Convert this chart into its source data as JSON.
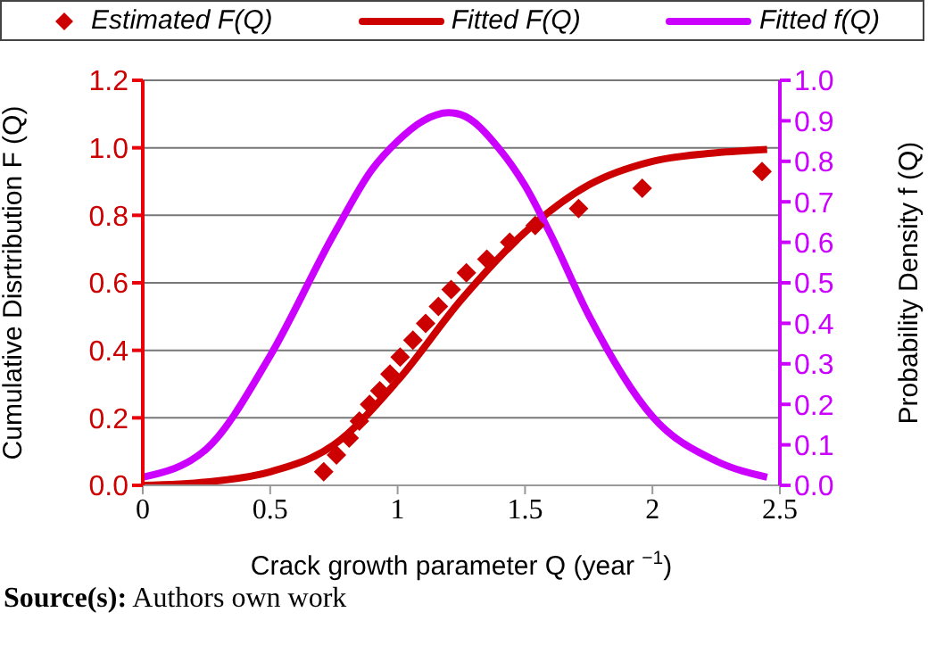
{
  "chart_data": {
    "type": "line",
    "xlabel": "Crack growth parameter Q (year $^{−1}$)",
    "ylabel": "Cumulative Disrtribution F (Q)",
    "y2label": "Probability Density f (Q)",
    "xlim": [
      0,
      2.5
    ],
    "xticks": [
      0,
      0.5,
      1,
      1.5,
      2,
      2.5
    ],
    "ylim": [
      0,
      1.2
    ],
    "yticks": [
      {
        "value": 0,
        "label": "0.0"
      },
      {
        "value": 0.2,
        "label": "0.2"
      },
      {
        "value": 0.4,
        "label": "0.4"
      },
      {
        "value": 0.6,
        "label": "0.6"
      },
      {
        "value": 0.8,
        "label": "0.8"
      },
      {
        "value": 1,
        "label": "1.0"
      },
      {
        "value": 1.2,
        "label": "1.2"
      }
    ],
    "y2lim": [
      0,
      1
    ],
    "y2ticks": [
      {
        "value": 0,
        "label": "0.0"
      },
      0.1,
      0.2,
      0.3,
      0.4,
      0.5,
      0.6,
      0.7,
      0.8,
      0.9,
      {
        "value": 1,
        "label": "1.0"
      }
    ],
    "grid": "y",
    "legend": "top",
    "series": [
      {
        "name": "Estimated F(Q)",
        "type": "scatter",
        "marker": "diamond",
        "color": "#cc0000",
        "x": [
          0.71,
          0.76,
          0.81,
          0.85,
          0.89,
          0.93,
          0.97,
          1.01,
          1.06,
          1.11,
          1.16,
          1.21,
          1.27,
          1.35,
          1.44,
          1.54,
          1.71,
          1.96,
          2.43
        ],
        "values": [
          0.04,
          0.09,
          0.14,
          0.19,
          0.24,
          0.28,
          0.33,
          0.38,
          0.43,
          0.48,
          0.53,
          0.58,
          0.63,
          0.67,
          0.72,
          0.77,
          0.82,
          0.88,
          0.93
        ]
      },
      {
        "name": "Fitted F(Q)",
        "color": "#cc0000",
        "x": [
          0,
          0.25,
          0.5,
          0.75,
          1,
          1.25,
          1.5,
          1.75,
          2,
          2.25,
          2.45
        ],
        "values": [
          0,
          0.01,
          0.04,
          0.12,
          0.31,
          0.55,
          0.75,
          0.89,
          0.96,
          0.985,
          0.995
        ]
      },
      {
        "name": "Fitted f(Q)",
        "color": "#cc00ff",
        "axis": "y2",
        "x": [
          0,
          0.25,
          0.5,
          0.75,
          0.9,
          1,
          1.1,
          1.2,
          1.25,
          1.4,
          1.5,
          1.6,
          1.75,
          2,
          2.25,
          2.45
        ],
        "values": [
          0.02,
          0.09,
          0.32,
          0.62,
          0.78,
          0.85,
          0.9,
          0.92,
          0.915,
          0.83,
          0.74,
          0.62,
          0.42,
          0.17,
          0.06,
          0.02
        ]
      }
    ],
    "annotations": [
      "Source(s): Authors own work"
    ]
  }
}
